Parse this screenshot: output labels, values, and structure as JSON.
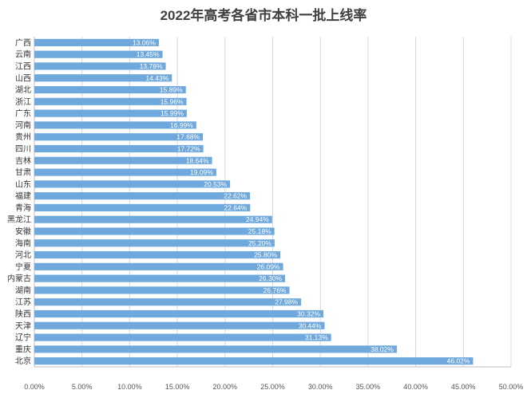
{
  "chart_data": {
    "type": "bar",
    "orientation": "horizontal",
    "title": "2022年高考各省市本科一批上线率",
    "xlabel": "",
    "ylabel": "",
    "xlim": [
      0,
      50
    ],
    "x_ticks": [
      "0.00%",
      "5.00%",
      "10.00%",
      "15.00%",
      "20.00%",
      "25.00%",
      "30.00%",
      "35.00%",
      "40.00%",
      "45.00%",
      "50.00%"
    ],
    "grid": true,
    "bar_color": "#6fa8dc",
    "categories": [
      "广西",
      "云南",
      "江西",
      "山西",
      "湖北",
      "浙江",
      "广东",
      "河南",
      "贵州",
      "四川",
      "吉林",
      "甘肃",
      "山东",
      "福建",
      "青海",
      "黑龙江",
      "安徽",
      "海南",
      "河北",
      "宁夏",
      "内蒙古",
      "湖南",
      "江苏",
      "陕西",
      "天津",
      "辽宁",
      "重庆",
      "北京"
    ],
    "values": [
      13.06,
      13.45,
      13.78,
      14.43,
      15.89,
      15.96,
      15.99,
      16.99,
      17.68,
      17.72,
      18.64,
      19.09,
      20.53,
      22.62,
      22.64,
      24.94,
      25.18,
      25.2,
      25.8,
      26.09,
      26.3,
      26.76,
      27.98,
      30.32,
      30.44,
      31.13,
      38.02,
      46.02
    ],
    "data_labels": [
      "13.06%",
      "13.45%",
      "13.78%",
      "14.43%",
      "15.89%",
      "15.96%",
      "15.99%",
      "16.99%",
      "17.68%",
      "17.72%",
      "18.64%",
      "19.09%",
      "20.53%",
      "22.62%",
      "22.64%",
      "24.94%",
      "25.18%",
      "25.20%",
      "25.80%",
      "26.09%",
      "26.30%",
      "26.76%",
      "27.98%",
      "30.32%",
      "30.44%",
      "31.13%",
      "38.02%",
      "46.02%"
    ]
  }
}
